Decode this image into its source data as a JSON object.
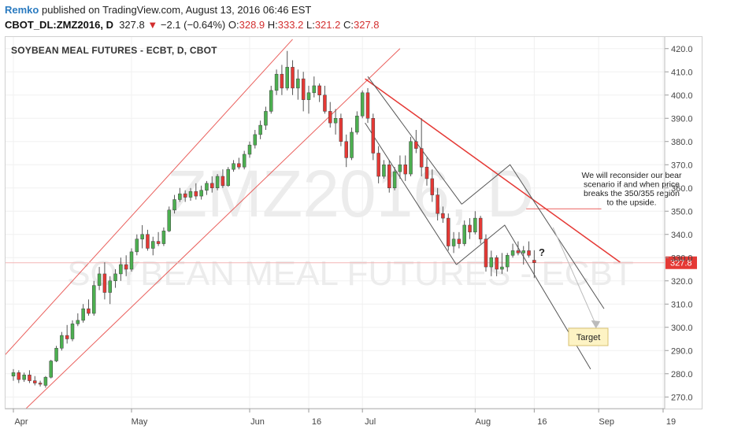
{
  "header": {
    "publisher": "Remko",
    "published_text": "published on TradingView.com, August 13, 2016 06:46 EST",
    "symbol": "CBOT_DL:ZMZ2016, D",
    "last": "327.8",
    "change_arrow": "▼",
    "change": "−2.1 (−0.64%)",
    "o_label": "O:",
    "o_value": "328.9",
    "h_label": "H:",
    "h_value": "333.2",
    "l_label": "L:",
    "l_value": "321.2",
    "c_label": "C:",
    "c_value": "327.8"
  },
  "chart_data": {
    "type": "candlestick",
    "title": "SOYBEAN MEAL FUTURES - ECBT, D, CBOT",
    "watermark_symbol": "ZMZ2016, D",
    "watermark_name": "SOYBEAN MEAL FUTURES - ECBT",
    "ylim": [
      265,
      425
    ],
    "yticks": [
      270,
      280,
      290,
      300,
      310,
      320,
      330,
      340,
      350,
      360,
      370,
      380,
      390,
      400,
      410,
      420
    ],
    "ytick_labels": [
      "270.0",
      "280.0",
      "290.0",
      "300.0",
      "310.0",
      "320.0",
      "330.0",
      "340.0",
      "350.0",
      "360.0",
      "370.0",
      "380.0",
      "390.0",
      "400.0",
      "410.0",
      "420.0"
    ],
    "xticks": [
      {
        "label": "Apr",
        "i": 0
      },
      {
        "label": "May",
        "i": 22
      },
      {
        "label": "Jun",
        "i": 44
      },
      {
        "label": "16",
        "i": 55
      },
      {
        "label": "Jul",
        "i": 65
      },
      {
        "label": "Aug",
        "i": 86
      },
      {
        "label": "16",
        "i": 97
      },
      {
        "label": "Sep",
        "i": 109
      },
      {
        "label": "19",
        "i": 121
      }
    ],
    "last_price": 327.8,
    "last_price_label": "327.8",
    "colors": {
      "up": "#4caf50",
      "down": "#e53935",
      "wick": "#555555",
      "redline": "#e53935",
      "grayline": "#555555"
    },
    "candles": [
      {
        "o": 279.0,
        "h": 282.0,
        "l": 277.0,
        "c": 280.5
      },
      {
        "o": 280.5,
        "h": 281.5,
        "l": 276.0,
        "c": 277.5
      },
      {
        "o": 277.5,
        "h": 280.5,
        "l": 276.5,
        "c": 279.5
      },
      {
        "o": 279.5,
        "h": 281.5,
        "l": 276.0,
        "c": 277.0
      },
      {
        "o": 277.0,
        "h": 279.0,
        "l": 275.0,
        "c": 276.0
      },
      {
        "o": 276.0,
        "h": 277.0,
        "l": 274.5,
        "c": 275.5
      },
      {
        "o": 275.0,
        "h": 279.0,
        "l": 274.0,
        "c": 278.5
      },
      {
        "o": 278.5,
        "h": 286.0,
        "l": 278.0,
        "c": 285.5
      },
      {
        "o": 285.5,
        "h": 292.0,
        "l": 285.0,
        "c": 291.0
      },
      {
        "o": 291.0,
        "h": 298.0,
        "l": 290.0,
        "c": 296.5
      },
      {
        "o": 296.5,
        "h": 301.0,
        "l": 293.0,
        "c": 295.0
      },
      {
        "o": 295.0,
        "h": 303.0,
        "l": 294.0,
        "c": 301.5
      },
      {
        "o": 301.5,
        "h": 306.0,
        "l": 300.5,
        "c": 303.0
      },
      {
        "o": 303.0,
        "h": 310.0,
        "l": 302.0,
        "c": 308.0
      },
      {
        "o": 308.0,
        "h": 312.0,
        "l": 305.0,
        "c": 306.0
      },
      {
        "o": 306.0,
        "h": 320.0,
        "l": 305.0,
        "c": 318.0
      },
      {
        "o": 318.0,
        "h": 326.0,
        "l": 316.0,
        "c": 323.0
      },
      {
        "o": 323.0,
        "h": 328.0,
        "l": 312.0,
        "c": 315.0
      },
      {
        "o": 315.0,
        "h": 322.0,
        "l": 310.0,
        "c": 320.0
      },
      {
        "o": 320.0,
        "h": 325.0,
        "l": 317.0,
        "c": 323.0
      },
      {
        "o": 323.0,
        "h": 330.0,
        "l": 320.0,
        "c": 327.0
      },
      {
        "o": 327.0,
        "h": 331.0,
        "l": 322.0,
        "c": 325.0
      },
      {
        "o": 325.0,
        "h": 334.0,
        "l": 324.0,
        "c": 332.5
      },
      {
        "o": 332.5,
        "h": 340.0,
        "l": 331.0,
        "c": 338.0
      },
      {
        "o": 338.0,
        "h": 344.0,
        "l": 334.0,
        "c": 340.0
      },
      {
        "o": 340.0,
        "h": 342.0,
        "l": 333.0,
        "c": 334.0
      },
      {
        "o": 334.0,
        "h": 339.0,
        "l": 331.0,
        "c": 337.0
      },
      {
        "o": 337.0,
        "h": 341.0,
        "l": 335.0,
        "c": 336.0
      },
      {
        "o": 336.0,
        "h": 343.0,
        "l": 335.0,
        "c": 341.5
      },
      {
        "o": 341.5,
        "h": 352.0,
        "l": 341.0,
        "c": 350.5
      },
      {
        "o": 350.5,
        "h": 357.0,
        "l": 349.0,
        "c": 355.0
      },
      {
        "o": 355.0,
        "h": 360.0,
        "l": 354.0,
        "c": 357.5
      },
      {
        "o": 357.5,
        "h": 359.0,
        "l": 354.0,
        "c": 356.0
      },
      {
        "o": 356.0,
        "h": 360.0,
        "l": 354.5,
        "c": 358.5
      },
      {
        "o": 358.5,
        "h": 362.0,
        "l": 355.0,
        "c": 356.5
      },
      {
        "o": 356.5,
        "h": 361.0,
        "l": 355.0,
        "c": 359.0
      },
      {
        "o": 359.0,
        "h": 363.0,
        "l": 357.0,
        "c": 362.0
      },
      {
        "o": 362.0,
        "h": 365.0,
        "l": 358.0,
        "c": 360.0
      },
      {
        "o": 360.0,
        "h": 366.0,
        "l": 359.0,
        "c": 365.0
      },
      {
        "o": 365.0,
        "h": 368.0,
        "l": 360.0,
        "c": 361.0
      },
      {
        "o": 361.0,
        "h": 369.0,
        "l": 360.5,
        "c": 368.0
      },
      {
        "o": 368.0,
        "h": 372.0,
        "l": 367.0,
        "c": 370.5
      },
      {
        "o": 370.5,
        "h": 373.0,
        "l": 368.0,
        "c": 369.0
      },
      {
        "o": 369.0,
        "h": 376.0,
        "l": 368.0,
        "c": 374.5
      },
      {
        "o": 374.5,
        "h": 380.0,
        "l": 373.0,
        "c": 378.5
      },
      {
        "o": 378.5,
        "h": 385.0,
        "l": 377.0,
        "c": 383.0
      },
      {
        "o": 383.0,
        "h": 389.0,
        "l": 381.0,
        "c": 387.0
      },
      {
        "o": 387.0,
        "h": 395.0,
        "l": 385.0,
        "c": 393.0
      },
      {
        "o": 393.0,
        "h": 404.0,
        "l": 392.0,
        "c": 402.0
      },
      {
        "o": 402.0,
        "h": 411.0,
        "l": 400.0,
        "c": 409.0
      },
      {
        "o": 409.0,
        "h": 413.0,
        "l": 400.0,
        "c": 403.0
      },
      {
        "o": 403.0,
        "h": 419.0,
        "l": 402.0,
        "c": 412.0
      },
      {
        "o": 412.0,
        "h": 415.0,
        "l": 400.0,
        "c": 403.0
      },
      {
        "o": 403.0,
        "h": 411.0,
        "l": 398.0,
        "c": 407.0
      },
      {
        "o": 407.0,
        "h": 410.0,
        "l": 393.0,
        "c": 398.0
      },
      {
        "o": 398.0,
        "h": 404.0,
        "l": 392.0,
        "c": 401.0
      },
      {
        "o": 401.0,
        "h": 408.0,
        "l": 399.0,
        "c": 404.0
      },
      {
        "o": 404.0,
        "h": 405.0,
        "l": 397.0,
        "c": 400.0
      },
      {
        "o": 400.0,
        "h": 404.0,
        "l": 392.0,
        "c": 393.0
      },
      {
        "o": 393.0,
        "h": 397.0,
        "l": 386.0,
        "c": 388.0
      },
      {
        "o": 388.0,
        "h": 394.0,
        "l": 383.0,
        "c": 390.0
      },
      {
        "o": 390.0,
        "h": 392.0,
        "l": 378.0,
        "c": 380.0
      },
      {
        "o": 380.0,
        "h": 383.0,
        "l": 369.0,
        "c": 373.0
      },
      {
        "o": 373.0,
        "h": 386.0,
        "l": 372.0,
        "c": 384.0
      },
      {
        "o": 384.0,
        "h": 393.0,
        "l": 383.0,
        "c": 391.0
      },
      {
        "o": 391.0,
        "h": 402.0,
        "l": 390.0,
        "c": 401.0
      },
      {
        "o": 401.0,
        "h": 403.0,
        "l": 388.0,
        "c": 390.0
      },
      {
        "o": 390.0,
        "h": 392.0,
        "l": 372.0,
        "c": 375.0
      },
      {
        "o": 375.0,
        "h": 378.0,
        "l": 362.0,
        "c": 365.0
      },
      {
        "o": 365.0,
        "h": 372.0,
        "l": 364.0,
        "c": 370.0
      },
      {
        "o": 370.0,
        "h": 372.0,
        "l": 358.0,
        "c": 360.0
      },
      {
        "o": 360.0,
        "h": 369.0,
        "l": 359.0,
        "c": 367.0
      },
      {
        "o": 367.0,
        "h": 374.0,
        "l": 364.0,
        "c": 370.0
      },
      {
        "o": 370.0,
        "h": 374.0,
        "l": 363.0,
        "c": 366.0
      },
      {
        "o": 366.0,
        "h": 382.0,
        "l": 365.0,
        "c": 380.0
      },
      {
        "o": 380.0,
        "h": 385.0,
        "l": 375.0,
        "c": 377.0
      },
      {
        "o": 377.0,
        "h": 390.0,
        "l": 365.0,
        "c": 369.0
      },
      {
        "o": 369.0,
        "h": 373.0,
        "l": 361.0,
        "c": 364.0
      },
      {
        "o": 364.0,
        "h": 368.0,
        "l": 354.0,
        "c": 357.0
      },
      {
        "o": 357.0,
        "h": 360.0,
        "l": 346.0,
        "c": 349.0
      },
      {
        "o": 349.0,
        "h": 352.0,
        "l": 345.0,
        "c": 347.0
      },
      {
        "o": 347.0,
        "h": 349.0,
        "l": 333.0,
        "c": 335.0
      },
      {
        "o": 335.0,
        "h": 341.0,
        "l": 332.0,
        "c": 338.0
      },
      {
        "o": 338.0,
        "h": 341.0,
        "l": 334.0,
        "c": 336.0
      },
      {
        "o": 336.0,
        "h": 346.0,
        "l": 335.0,
        "c": 344.0
      },
      {
        "o": 344.0,
        "h": 347.0,
        "l": 338.0,
        "c": 341.0
      },
      {
        "o": 341.0,
        "h": 350.0,
        "l": 340.0,
        "c": 347.0
      },
      {
        "o": 347.0,
        "h": 348.0,
        "l": 336.0,
        "c": 338.0
      },
      {
        "o": 338.0,
        "h": 340.0,
        "l": 324.0,
        "c": 326.0
      },
      {
        "o": 326.0,
        "h": 333.0,
        "l": 322.0,
        "c": 330.0
      },
      {
        "o": 330.0,
        "h": 331.0,
        "l": 322.0,
        "c": 325.0
      },
      {
        "o": 325.0,
        "h": 332.0,
        "l": 323.0,
        "c": 326.0
      },
      {
        "o": 326.0,
        "h": 332.0,
        "l": 324.0,
        "c": 331.0
      },
      {
        "o": 331.0,
        "h": 336.0,
        "l": 330.0,
        "c": 333.0
      },
      {
        "o": 333.0,
        "h": 337.0,
        "l": 331.0,
        "c": 332.0
      },
      {
        "o": 332.0,
        "h": 335.0,
        "l": 327.0,
        "c": 333.0
      },
      {
        "o": 333.0,
        "h": 337.0,
        "l": 330.0,
        "c": 331.0
      },
      {
        "o": 328.9,
        "h": 333.2,
        "l": 321.2,
        "c": 327.8
      }
    ],
    "annotations": {
      "note_text": "We will reconsider our bear\nscenario if and when  price\nbreaks the 350/355 region\nto the upside.",
      "target_label": "Target",
      "question_mark": "?"
    }
  }
}
